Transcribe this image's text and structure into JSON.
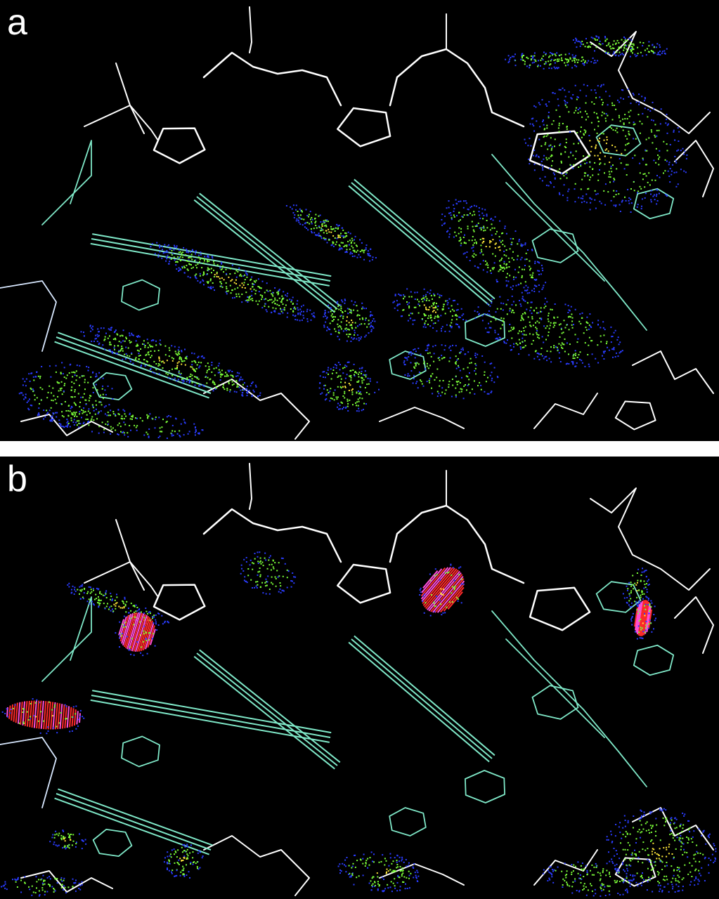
{
  "panels": [
    {
      "id": "a",
      "label": "a"
    },
    {
      "id": "b",
      "label": "b"
    }
  ],
  "colors": {
    "backbone": "#ffffff",
    "base": "#7fe8c8",
    "dot_blue": "#2a3cff",
    "dot_green": "#7cff3a",
    "dot_yellow": "#ffe83a",
    "dot_red": "#ff2a2a",
    "spike_magenta": "#ff4fd8"
  }
}
